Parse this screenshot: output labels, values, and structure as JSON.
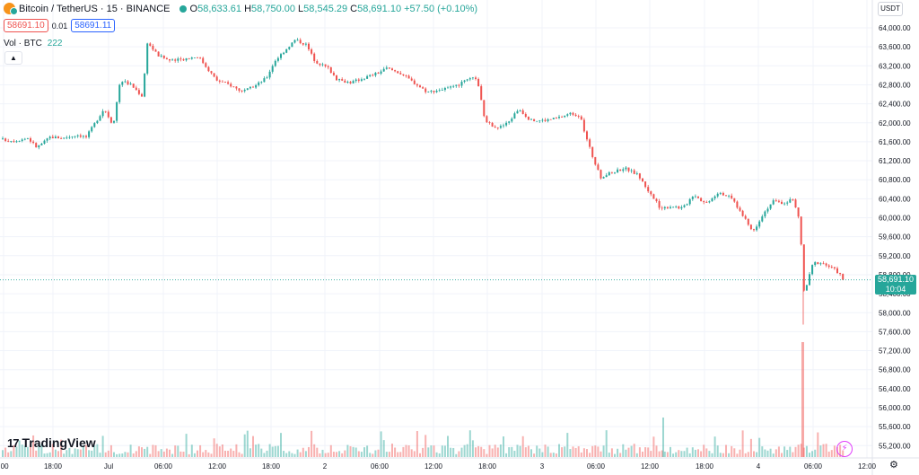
{
  "header": {
    "symbol": "Bitcoin / TetherUS · 15 · BINANCE",
    "o_label": "O",
    "o_value": "58,633.61",
    "h_label": "H",
    "h_value": "58,750.00",
    "l_label": "L",
    "l_value": "58,545.29",
    "c_label": "C",
    "c_value": "58,691.10",
    "change": "+57.50 (+0.10%)"
  },
  "quote": {
    "sell": "58691.10",
    "spread": "0.01",
    "buy": "58691.11"
  },
  "volume": {
    "label": "Vol · BTC",
    "value": "222"
  },
  "currency": "USDT",
  "last_price": {
    "value": "58,691.10",
    "countdown": "10:04"
  },
  "branding": {
    "logo_text": "TradingView",
    "logo_mark": "17"
  },
  "colors": {
    "up": "#26a69a",
    "down": "#ef5350",
    "grid": "#f0f3fa"
  },
  "icons": {
    "collapse": "chevron-up-icon",
    "settings": "gear-icon",
    "alert": "lightning-icon"
  },
  "chart_data": {
    "type": "candlestick",
    "interval": "15",
    "y_axis_ticks": [
      "64,000.00",
      "63,600.00",
      "63,200.00",
      "62,800.00",
      "62,400.00",
      "62,000.00",
      "61,600.00",
      "61,200.00",
      "60,800.00",
      "60,400.00",
      "60,000.00",
      "59,600.00",
      "59,200.00",
      "58,800.00",
      "58,400.00",
      "58,000.00",
      "57,600.00",
      "57,200.00",
      "56,800.00",
      "56,400.00",
      "56,000.00",
      "55,600.00",
      "55,200.00"
    ],
    "y_axis_values": [
      64000,
      63600,
      63200,
      62800,
      62400,
      62000,
      61600,
      61200,
      60800,
      60400,
      60000,
      59600,
      59200,
      58800,
      58400,
      58000,
      57600,
      57200,
      56800,
      56400,
      56000,
      55600,
      55200
    ],
    "x_axis_ticks": [
      ":00",
      "18:00",
      "Jul",
      "06:00",
      "12:00",
      "18:00",
      "2",
      "06:00",
      "12:00",
      "18:00",
      "3",
      "06:00",
      "12:00",
      "18:00",
      "4",
      "06:00",
      "12:00"
    ],
    "grid": true,
    "close_path": [
      [
        0,
        61650
      ],
      [
        15,
        61620
      ],
      [
        30,
        61680
      ],
      [
        40,
        61480
      ],
      [
        55,
        61700
      ],
      [
        70,
        61680
      ],
      [
        85,
        61750
      ],
      [
        95,
        61700
      ],
      [
        105,
        62000
      ],
      [
        115,
        62300
      ],
      [
        125,
        61950
      ],
      [
        133,
        62900
      ],
      [
        145,
        62800
      ],
      [
        158,
        62550
      ],
      [
        163,
        63700
      ],
      [
        175,
        63420
      ],
      [
        190,
        63300
      ],
      [
        205,
        63350
      ],
      [
        220,
        63400
      ],
      [
        232,
        63100
      ],
      [
        240,
        62900
      ],
      [
        255,
        62800
      ],
      [
        270,
        62650
      ],
      [
        285,
        62800
      ],
      [
        296,
        62950
      ],
      [
        305,
        63300
      ],
      [
        315,
        63500
      ],
      [
        328,
        63750
      ],
      [
        340,
        63650
      ],
      [
        350,
        63300
      ],
      [
        365,
        63150
      ],
      [
        375,
        62900
      ],
      [
        390,
        62850
      ],
      [
        405,
        62950
      ],
      [
        420,
        63050
      ],
      [
        430,
        63150
      ],
      [
        445,
        63050
      ],
      [
        460,
        62850
      ],
      [
        475,
        62650
      ],
      [
        490,
        62700
      ],
      [
        505,
        62750
      ],
      [
        520,
        62900
      ],
      [
        530,
        62950
      ],
      [
        540,
        62000
      ],
      [
        555,
        61900
      ],
      [
        565,
        62000
      ],
      [
        577,
        62300
      ],
      [
        590,
        62050
      ],
      [
        605,
        62050
      ],
      [
        620,
        62100
      ],
      [
        635,
        62200
      ],
      [
        645,
        62150
      ],
      [
        652,
        61700
      ],
      [
        660,
        61250
      ],
      [
        668,
        60850
      ],
      [
        680,
        60950
      ],
      [
        695,
        61050
      ],
      [
        710,
        60900
      ],
      [
        722,
        60550
      ],
      [
        735,
        60200
      ],
      [
        748,
        60250
      ],
      [
        760,
        60200
      ],
      [
        772,
        60500
      ],
      [
        785,
        60300
      ],
      [
        800,
        60550
      ],
      [
        815,
        60400
      ],
      [
        828,
        60000
      ],
      [
        838,
        59700
      ],
      [
        848,
        60050
      ],
      [
        860,
        60350
      ],
      [
        872,
        60300
      ],
      [
        882,
        60400
      ],
      [
        890,
        59950
      ],
      [
        895,
        58400
      ],
      [
        905,
        59050
      ],
      [
        915,
        59050
      ],
      [
        930,
        58900
      ],
      [
        941,
        58691
      ]
    ],
    "last_close": 58691.1
  }
}
